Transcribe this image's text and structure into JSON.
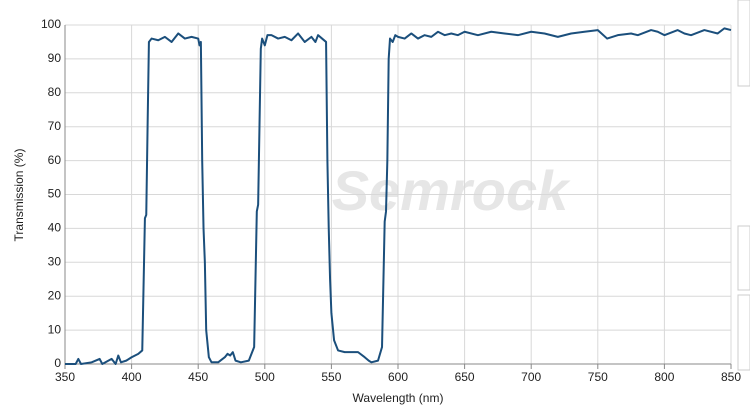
{
  "chart_data": {
    "type": "line",
    "watermark": "Semrock",
    "x_label": "Wavelength (nm)",
    "y_label": "Transmission (%)",
    "x": [
      350,
      358,
      360,
      362,
      370,
      376,
      378,
      385,
      388,
      390,
      392,
      396,
      400,
      405,
      408,
      410,
      411,
      412,
      413,
      415,
      420,
      425,
      430,
      435,
      440,
      445,
      450,
      451,
      452,
      453,
      454,
      455,
      456,
      458,
      460,
      465,
      470,
      472,
      474,
      476,
      478,
      482,
      488,
      492,
      494,
      495,
      496,
      497,
      498,
      500,
      502,
      505,
      510,
      515,
      520,
      525,
      530,
      535,
      538,
      540,
      543,
      546,
      547,
      548,
      549,
      550,
      552,
      555,
      560,
      565,
      570,
      575,
      578,
      580,
      585,
      588,
      590,
      591,
      592,
      593,
      594,
      596,
      598,
      600,
      605,
      610,
      615,
      620,
      625,
      630,
      635,
      640,
      645,
      650,
      660,
      670,
      680,
      690,
      700,
      710,
      720,
      730,
      740,
      750,
      757,
      765,
      775,
      780,
      790,
      795,
      800,
      810,
      815,
      820,
      830,
      840,
      845,
      850
    ],
    "series": [
      {
        "name": "Transmission",
        "color": "#1b4f7c",
        "values": [
          0,
          0,
          1.5,
          0,
          0.5,
          1.5,
          0,
          1.5,
          0,
          2.5,
          0.5,
          1,
          2,
          3,
          4,
          43,
          44,
          70,
          95,
          96,
          95.5,
          96.5,
          95,
          97.5,
          96,
          96.5,
          96,
          94,
          95,
          60,
          40,
          30,
          10,
          2,
          0.5,
          0.5,
          2,
          3,
          2.5,
          3.5,
          1,
          0.5,
          1,
          5,
          45,
          47,
          70,
          93,
          96,
          94,
          97,
          97,
          96,
          96.5,
          95.5,
          97.5,
          95,
          96.5,
          95,
          97,
          96,
          95,
          60,
          40,
          25,
          15,
          7,
          4,
          3.5,
          3.5,
          3.5,
          2,
          1,
          0.5,
          1,
          5,
          42,
          45,
          60,
          90,
          96,
          95,
          97,
          96.5,
          96,
          97.5,
          96,
          97,
          96.5,
          98,
          97,
          97.5,
          97,
          98,
          97,
          98,
          97.5,
          97,
          98,
          97.5,
          96.5,
          97.5,
          98,
          98.5,
          96,
          97,
          97.5,
          97,
          98.5,
          98,
          97,
          98.5,
          97.5,
          97,
          98.5,
          97.5,
          99,
          98.5
        ]
      }
    ],
    "xlim": [
      350,
      850
    ],
    "ylim": [
      0,
      100
    ],
    "xticks": [
      350,
      400,
      450,
      500,
      550,
      600,
      650,
      700,
      750,
      800,
      850
    ],
    "yticks": [
      0,
      10,
      20,
      30,
      40,
      50,
      60,
      70,
      80,
      90,
      100
    ],
    "grid": true
  }
}
